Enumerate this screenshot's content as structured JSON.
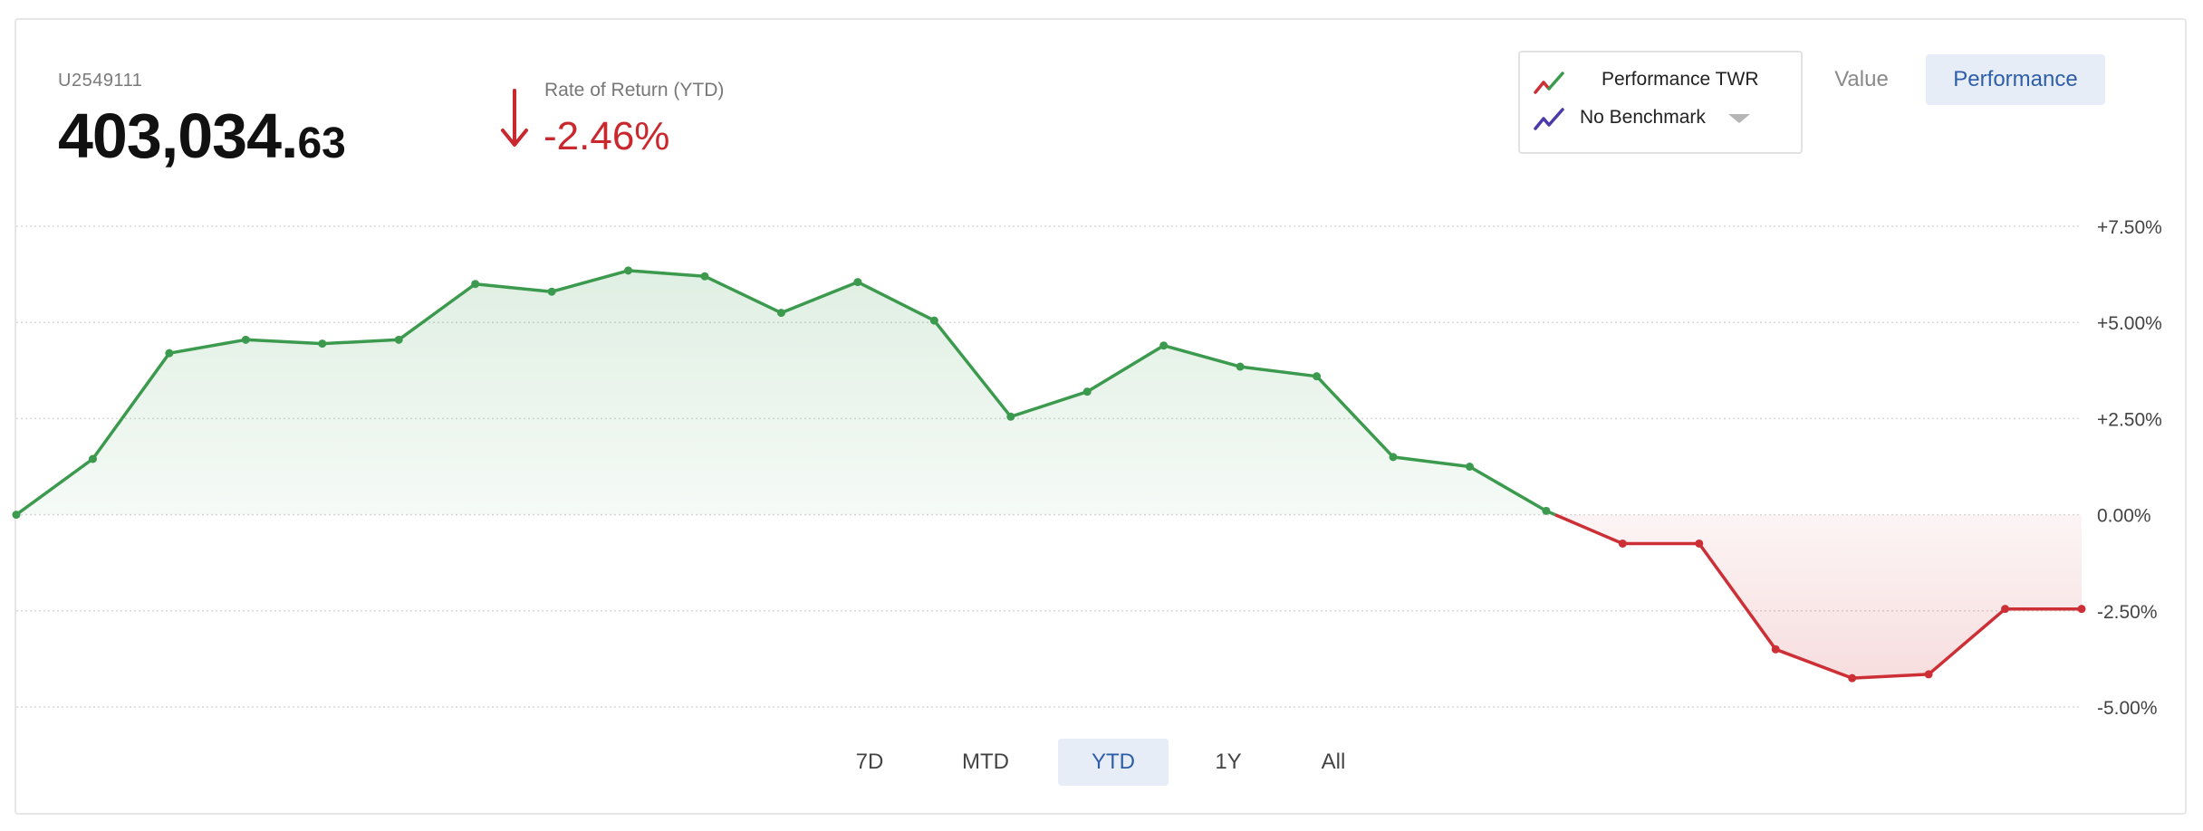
{
  "account": {
    "id": "U2549111",
    "balance_whole": "403,034.",
    "balance_cents": "63"
  },
  "return_summary": {
    "label": "Rate of Return (YTD)",
    "value": "-2.46%",
    "direction": "down",
    "color": "#c8282e"
  },
  "legend": {
    "series_label": "Performance TWR",
    "benchmark_label": "No Benchmark"
  },
  "view_toggle": {
    "value_label": "Value",
    "performance_label": "Performance",
    "active": "Performance"
  },
  "ranges": {
    "items": [
      "7D",
      "MTD",
      "YTD",
      "1Y",
      "All"
    ],
    "active": "YTD"
  },
  "colors": {
    "positive": "#3c9a4e",
    "negative": "#cc2f35",
    "benchmark": "#4b3aa8",
    "grid": "#d8d8d8",
    "accent": "#2e5ea8"
  },
  "chart_data": {
    "type": "area",
    "title": "",
    "xlabel": "",
    "ylabel": "",
    "ylim": [
      -5,
      7.5
    ],
    "y_ticks": [
      "+7.50%",
      "+5.00%",
      "+2.50%",
      "0.00%",
      "-2.50%",
      "-5.00%"
    ],
    "y_tick_values": [
      7.5,
      5.0,
      2.5,
      0.0,
      -2.5,
      -5.0
    ],
    "axis_side": "right",
    "grid": true,
    "series": [
      {
        "values": [
          0.0,
          1.45,
          4.2,
          4.55,
          4.45,
          4.55,
          6.0,
          5.8,
          6.35,
          6.2,
          5.25,
          6.05,
          5.05,
          2.55,
          3.2,
          4.4,
          3.85,
          3.6,
          1.5,
          1.25,
          0.1,
          -0.75,
          -0.75,
          -3.5,
          -4.25,
          -4.15,
          -2.45,
          -2.45
        ]
      }
    ]
  }
}
